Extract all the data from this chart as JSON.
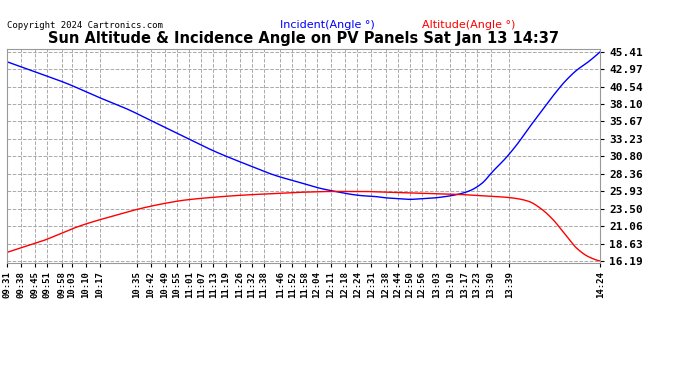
{
  "title": "Sun Altitude & Incidence Angle on PV Panels Sat Jan 13 14:37",
  "copyright": "Copyright 2024 Cartronics.com",
  "legend_incident": "Incident(Angle °)",
  "legend_altitude": "Altitude(Angle °)",
  "incident_color": "blue",
  "altitude_color": "red",
  "bg_color": "#ffffff",
  "plot_bg_color": "#ffffff",
  "yticks": [
    16.19,
    18.63,
    21.06,
    23.5,
    25.93,
    28.36,
    30.8,
    33.23,
    35.67,
    38.1,
    40.54,
    42.97,
    45.41
  ],
  "ymin": 16.19,
  "ymax": 45.41,
  "xtick_labels": [
    "09:31",
    "09:38",
    "09:45",
    "09:51",
    "09:58",
    "10:03",
    "10:10",
    "10:17",
    "10:35",
    "10:42",
    "10:49",
    "10:55",
    "11:01",
    "11:07",
    "11:13",
    "11:19",
    "11:26",
    "11:32",
    "11:38",
    "11:46",
    "11:52",
    "11:58",
    "12:04",
    "12:11",
    "12:18",
    "12:24",
    "12:31",
    "12:38",
    "12:44",
    "12:50",
    "12:56",
    "13:03",
    "13:10",
    "13:17",
    "13:23",
    "13:30",
    "13:39",
    "14:24"
  ],
  "incident_x": [
    0.0,
    0.05,
    0.1,
    0.15,
    0.2,
    0.25,
    0.3,
    0.35,
    0.4,
    0.45,
    0.5,
    0.53,
    0.56,
    0.58,
    0.6,
    0.62,
    0.64,
    0.66,
    0.68,
    0.7,
    0.72,
    0.74,
    0.76,
    0.78,
    0.8,
    0.82,
    0.84,
    0.86,
    0.88,
    0.9,
    0.92,
    0.94,
    0.96,
    0.98,
    1.0
  ],
  "incident_y": [
    44.0,
    42.5,
    41.0,
    39.2,
    37.5,
    35.5,
    33.5,
    31.5,
    29.8,
    28.2,
    27.0,
    26.3,
    25.8,
    25.5,
    25.3,
    25.2,
    25.0,
    24.9,
    24.8,
    24.9,
    25.0,
    25.2,
    25.5,
    26.0,
    27.0,
    28.8,
    30.5,
    32.5,
    34.8,
    37.0,
    39.2,
    41.2,
    42.8,
    44.0,
    45.4
  ],
  "altitude_x": [
    0.0,
    0.03,
    0.06,
    0.09,
    0.12,
    0.15,
    0.18,
    0.21,
    0.24,
    0.27,
    0.3,
    0.35,
    0.4,
    0.45,
    0.5,
    0.55,
    0.58,
    0.6,
    0.62,
    0.64,
    0.66,
    0.68,
    0.7,
    0.72,
    0.74,
    0.76,
    0.78,
    0.8,
    0.82,
    0.84,
    0.86,
    0.88,
    0.9,
    0.92,
    0.94,
    0.96,
    0.98,
    1.0
  ],
  "altitude_y": [
    17.4,
    18.2,
    19.0,
    20.0,
    21.0,
    21.8,
    22.5,
    23.2,
    23.8,
    24.3,
    24.7,
    25.1,
    25.4,
    25.6,
    25.8,
    25.9,
    25.9,
    25.9,
    25.85,
    25.8,
    25.75,
    25.7,
    25.65,
    25.6,
    25.55,
    25.5,
    25.4,
    25.3,
    25.2,
    25.1,
    24.9,
    24.5,
    23.5,
    22.0,
    20.0,
    18.0,
    16.8,
    16.2
  ]
}
